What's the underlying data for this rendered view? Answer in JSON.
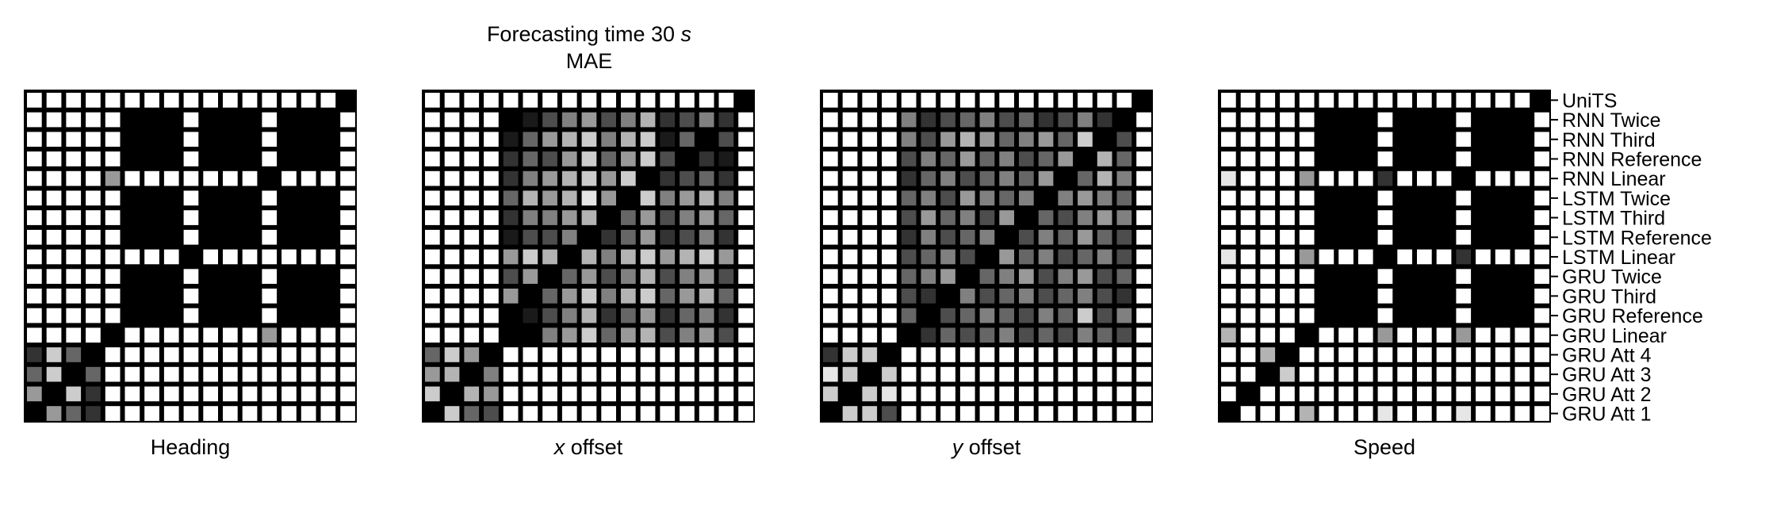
{
  "figure": {
    "title": "Forecasting time 30 s",
    "title_prefix": "Forecasting time 30 ",
    "title_unit": "s",
    "subtitle": "MAE"
  },
  "chart_data": [
    {
      "type": "heatmap",
      "name": "Heading",
      "xlabel": "Heading",
      "xlabel_italic": "",
      "xlabel_rest": "Heading",
      "colormap": "grayscale, black = low, white = high",
      "categories": [
        "UniTS",
        "RNN Twice",
        "RNN Third",
        "RNN Reference",
        "RNN Linear",
        "LSTM Twice",
        "LSTM Third",
        "LSTM Reference",
        "LSTM Linear",
        "GRU Twice",
        "GRU Third",
        "GRU Reference",
        "GRU Linear",
        "GRU Att 4",
        "GRU Att 3",
        "GRU Att 2",
        "GRU Att 1"
      ],
      "matrix": [
        [
          1,
          1,
          1,
          1,
          1,
          1,
          1,
          1,
          1,
          1,
          1,
          1,
          1,
          1,
          1,
          1,
          0
        ],
        [
          1,
          1,
          1,
          1,
          1,
          0,
          0,
          0,
          1,
          0,
          0,
          0,
          1,
          0,
          0,
          0,
          1
        ],
        [
          1,
          1,
          1,
          1,
          1,
          0,
          0,
          0,
          1,
          0,
          0,
          0,
          1,
          0,
          0,
          0,
          1
        ],
        [
          1,
          1,
          1,
          1,
          1,
          0,
          0,
          0,
          1,
          0,
          0,
          0,
          1,
          0,
          0,
          0,
          1
        ],
        [
          1,
          1,
          1,
          1,
          0.6,
          1,
          1,
          1,
          1,
          1,
          1,
          1,
          0,
          1,
          1,
          1,
          1
        ],
        [
          1,
          1,
          1,
          1,
          1,
          0,
          0,
          0,
          1,
          0,
          0,
          0,
          1,
          0,
          0,
          0,
          1
        ],
        [
          1,
          1,
          1,
          1,
          1,
          0,
          0,
          0,
          1,
          0,
          0,
          0,
          1,
          0,
          0,
          0,
          1
        ],
        [
          1,
          1,
          1,
          1,
          1,
          0,
          0,
          0,
          1,
          0,
          0,
          0,
          1,
          0,
          0,
          0,
          1
        ],
        [
          1,
          1,
          1,
          1,
          1,
          1,
          1,
          1,
          0,
          1,
          1,
          1,
          1,
          1,
          1,
          1,
          1
        ],
        [
          1,
          1,
          1,
          1,
          1,
          0,
          0,
          0,
          1,
          0,
          0,
          0,
          1,
          0,
          0,
          0,
          1
        ],
        [
          1,
          1,
          1,
          1,
          1,
          0,
          0,
          0,
          1,
          0,
          0,
          0,
          1,
          0,
          0,
          0,
          1
        ],
        [
          1,
          1,
          1,
          1,
          1,
          0,
          0,
          0,
          1,
          0,
          0,
          0,
          1,
          0,
          0,
          0,
          1
        ],
        [
          1,
          1,
          1,
          1,
          0,
          1,
          1,
          1,
          1,
          1,
          1,
          1,
          0.6,
          1,
          1,
          1,
          1
        ],
        [
          0.2,
          0.8,
          0.4,
          0,
          1,
          1,
          1,
          1,
          1,
          1,
          1,
          1,
          1,
          1,
          1,
          1,
          1
        ],
        [
          0.4,
          0.8,
          0,
          0.4,
          1,
          1,
          1,
          1,
          1,
          1,
          1,
          1,
          1,
          1,
          1,
          1,
          1
        ],
        [
          0.6,
          0,
          0.8,
          0.2,
          1,
          1,
          1,
          1,
          1,
          1,
          1,
          1,
          1,
          1,
          1,
          1,
          1
        ],
        [
          0,
          0.6,
          0.4,
          0.2,
          1,
          1,
          1,
          1,
          1,
          1,
          1,
          1,
          1,
          1,
          1,
          1,
          1
        ]
      ]
    },
    {
      "type": "heatmap",
      "name": "x offset",
      "xlabel": "x offset",
      "xlabel_italic": "x",
      "xlabel_rest": " offset",
      "colormap": "grayscale, black = low, white = high",
      "categories": [
        "UniTS",
        "RNN Twice",
        "RNN Third",
        "RNN Reference",
        "RNN Linear",
        "LSTM Twice",
        "LSTM Third",
        "LSTM Reference",
        "LSTM Linear",
        "GRU Twice",
        "GRU Third",
        "GRU Reference",
        "GRU Linear",
        "GRU Att 4",
        "GRU Att 3",
        "GRU Att 2",
        "GRU Att 1"
      ],
      "matrix": [
        [
          1,
          1,
          1,
          1,
          1,
          1,
          1,
          1,
          1,
          1,
          1,
          1,
          1,
          1,
          1,
          1,
          0
        ],
        [
          1,
          1,
          1,
          1,
          0,
          0.1,
          0.3,
          0.5,
          0.6,
          0.3,
          0.5,
          0.7,
          0.2,
          0.3,
          0.5,
          0.2,
          1
        ],
        [
          1,
          1,
          1,
          1,
          0.1,
          0.4,
          0.6,
          0.7,
          0.8,
          0.5,
          0.7,
          0.8,
          0.1,
          0.4,
          0,
          0.3,
          1
        ],
        [
          1,
          1,
          1,
          1,
          0.2,
          0.4,
          0.3,
          0.6,
          0.8,
          0.4,
          0.6,
          0.8,
          0.3,
          0,
          0.2,
          0.1,
          1
        ],
        [
          1,
          1,
          1,
          1,
          0.2,
          0.5,
          0.6,
          0.7,
          0.8,
          0.6,
          0.8,
          0,
          0.2,
          0.3,
          0.4,
          0.2,
          1
        ],
        [
          1,
          1,
          1,
          1,
          0.4,
          0.7,
          0.6,
          0.7,
          0.9,
          0.6,
          0,
          0.8,
          0.5,
          0.6,
          0.7,
          0.5,
          1
        ],
        [
          1,
          1,
          1,
          1,
          0.2,
          0.5,
          0.5,
          0.6,
          0.7,
          0,
          0.4,
          0.6,
          0.3,
          0.5,
          0.6,
          0.4,
          1
        ],
        [
          1,
          1,
          1,
          1,
          0.1,
          0.3,
          0.3,
          0.5,
          0,
          0.2,
          0.4,
          0.6,
          0.2,
          0.3,
          0.5,
          0.2,
          1
        ],
        [
          1,
          1,
          1,
          1,
          0.6,
          0.8,
          0.7,
          0,
          0.7,
          0.5,
          0.7,
          0.8,
          0.6,
          0.7,
          0.8,
          0.6,
          1
        ],
        [
          1,
          1,
          1,
          1,
          0.3,
          0.6,
          0,
          0.4,
          0.6,
          0.3,
          0.5,
          0.7,
          0.3,
          0.5,
          0.6,
          0.3,
          1
        ],
        [
          1,
          1,
          1,
          1,
          0.6,
          0,
          0.4,
          0.6,
          0.8,
          0.5,
          0.7,
          0.8,
          0.4,
          0.6,
          0.7,
          0.4,
          1
        ],
        [
          1,
          1,
          1,
          1,
          0,
          0.1,
          0.3,
          0.5,
          0.7,
          0.2,
          0.4,
          0.6,
          0.2,
          0.4,
          0.5,
          0.2,
          1
        ],
        [
          1,
          1,
          1,
          1,
          0,
          0,
          0.5,
          0.6,
          0.8,
          0.4,
          0.6,
          0.7,
          0.3,
          0.5,
          0.6,
          0.3,
          1
        ],
        [
          0.4,
          0.8,
          0.6,
          0,
          1,
          1,
          1,
          1,
          1,
          1,
          1,
          1,
          1,
          1,
          1,
          1,
          1
        ],
        [
          0.6,
          0.7,
          0,
          0.5,
          1,
          1,
          1,
          1,
          1,
          1,
          1,
          1,
          1,
          1,
          1,
          1,
          1
        ],
        [
          0.8,
          0,
          0.7,
          0.6,
          1,
          1,
          1,
          1,
          1,
          1,
          1,
          1,
          1,
          1,
          1,
          1,
          1
        ],
        [
          0,
          0.8,
          0.4,
          0.3,
          1,
          1,
          1,
          1,
          1,
          1,
          1,
          1,
          1,
          1,
          1,
          1,
          1
        ]
      ]
    },
    {
      "type": "heatmap",
      "name": "y offset",
      "xlabel": "y offset",
      "xlabel_italic": "y",
      "xlabel_rest": " offset",
      "colormap": "grayscale, black = low, white = high",
      "categories": [
        "UniTS",
        "RNN Twice",
        "RNN Third",
        "RNN Reference",
        "RNN Linear",
        "LSTM Twice",
        "LSTM Third",
        "LSTM Reference",
        "LSTM Linear",
        "GRU Twice",
        "GRU Third",
        "GRU Reference",
        "GRU Linear",
        "GRU Att 4",
        "GRU Att 3",
        "GRU Att 2",
        "GRU Att 1"
      ],
      "matrix": [
        [
          1,
          1,
          1,
          1,
          1,
          1,
          1,
          1,
          1,
          1,
          1,
          1,
          1,
          1,
          1,
          1,
          0
        ],
        [
          1,
          1,
          1,
          1,
          0.5,
          0.2,
          0.3,
          0.4,
          0.5,
          0.3,
          0.4,
          0.2,
          0.3,
          0.5,
          0.2,
          0,
          1
        ],
        [
          1,
          1,
          1,
          1,
          0.5,
          0.3,
          0.6,
          0.7,
          0.6,
          0.4,
          0.5,
          0.6,
          0.4,
          0.8,
          0,
          0.3,
          1
        ],
        [
          1,
          1,
          1,
          1,
          0.3,
          0.5,
          0.4,
          0.6,
          0.4,
          0.5,
          0.3,
          0.4,
          0.6,
          0,
          0.7,
          0.4,
          1
        ],
        [
          1,
          1,
          1,
          1,
          0.2,
          0.4,
          0.5,
          0.3,
          0.4,
          0.5,
          0.4,
          0.6,
          0,
          0.4,
          0.7,
          0.5,
          1
        ],
        [
          1,
          1,
          1,
          1,
          0.4,
          0.5,
          0.3,
          0.6,
          0.5,
          0.4,
          0.5,
          0,
          0.5,
          0.6,
          0.5,
          0.4,
          1
        ],
        [
          1,
          1,
          1,
          1,
          0.3,
          0.6,
          0.4,
          0.5,
          0.3,
          0.6,
          0,
          0.4,
          0.3,
          0.5,
          0.6,
          0.5,
          1
        ],
        [
          1,
          1,
          1,
          1,
          0.2,
          0.5,
          0.3,
          0.4,
          0.5,
          0,
          0.3,
          0.5,
          0.4,
          0.6,
          0.4,
          0.3,
          1
        ],
        [
          1,
          1,
          1,
          1,
          0.3,
          0.4,
          0.5,
          0.3,
          0,
          0.6,
          0.4,
          0.5,
          0.3,
          0.4,
          0.5,
          0.3,
          1
        ],
        [
          1,
          1,
          1,
          1,
          0.4,
          0.5,
          0.6,
          0,
          0.4,
          0.5,
          0.6,
          0.3,
          0.5,
          0.6,
          0.3,
          0.4,
          1
        ],
        [
          1,
          1,
          1,
          1,
          0.3,
          0.2,
          0,
          0.5,
          0.3,
          0.4,
          0.5,
          0.3,
          0.4,
          0.5,
          0.3,
          0.2,
          1
        ],
        [
          1,
          1,
          1,
          1,
          0.4,
          0,
          0.3,
          0.4,
          0.5,
          0.4,
          0.3,
          0.5,
          0.4,
          0.8,
          0.3,
          0.5,
          1
        ],
        [
          1,
          1,
          1,
          1,
          0,
          0.2,
          0.4,
          0.3,
          0.4,
          0.5,
          0.3,
          0.4,
          0.3,
          0.5,
          0.4,
          0.3,
          1
        ],
        [
          0.2,
          0.8,
          0.8,
          0,
          1,
          1,
          1,
          1,
          1,
          1,
          1,
          1,
          1,
          1,
          1,
          1,
          1
        ],
        [
          0.9,
          0.8,
          0,
          0.8,
          1,
          1,
          1,
          1,
          1,
          1,
          1,
          1,
          1,
          1,
          1,
          1,
          1
        ],
        [
          0.8,
          0,
          0.8,
          0.9,
          1,
          1,
          1,
          1,
          1,
          1,
          1,
          1,
          1,
          1,
          1,
          1,
          1
        ],
        [
          0,
          0.8,
          0.8,
          0.3,
          1,
          1,
          1,
          1,
          1,
          1,
          1,
          1,
          1,
          1,
          1,
          1,
          1
        ]
      ]
    },
    {
      "type": "heatmap",
      "name": "Speed",
      "xlabel": "Speed",
      "xlabel_italic": "",
      "xlabel_rest": "Speed",
      "colormap": "grayscale, black = low, white = high",
      "categories": [
        "UniTS",
        "RNN Twice",
        "RNN Third",
        "RNN Reference",
        "RNN Linear",
        "LSTM Twice",
        "LSTM Third",
        "LSTM Reference",
        "LSTM Linear",
        "GRU Twice",
        "GRU Third",
        "GRU Reference",
        "GRU Linear",
        "GRU Att 4",
        "GRU Att 3",
        "GRU Att 2",
        "GRU Att 1"
      ],
      "matrix": [
        [
          1,
          1,
          1,
          1,
          1,
          1,
          1,
          1,
          1,
          1,
          1,
          1,
          1,
          1,
          1,
          1,
          0
        ],
        [
          1,
          1,
          1,
          1,
          1,
          0,
          0,
          0,
          1,
          0,
          0,
          0,
          1,
          0,
          0,
          0,
          1
        ],
        [
          1,
          1,
          1,
          1,
          1,
          0,
          0,
          0,
          1,
          0,
          0,
          0,
          1,
          0,
          0,
          0,
          1
        ],
        [
          1,
          1,
          1,
          1,
          1,
          0,
          0,
          0,
          1,
          0,
          0,
          0,
          1,
          0,
          0,
          0,
          1
        ],
        [
          0.9,
          1,
          1,
          1,
          0.6,
          1,
          1,
          1,
          0.2,
          1,
          1,
          1,
          0,
          1,
          1,
          1,
          1
        ],
        [
          1,
          1,
          1,
          1,
          1,
          0,
          0,
          0,
          1,
          0,
          0,
          0,
          1,
          0,
          0,
          0,
          1
        ],
        [
          1,
          1,
          1,
          1,
          1,
          0,
          0,
          0,
          1,
          0,
          0,
          0,
          1,
          0,
          0,
          0,
          1
        ],
        [
          1,
          1,
          1,
          1,
          1,
          0,
          0,
          0,
          1,
          0,
          0,
          0,
          1,
          0,
          0,
          0,
          1
        ],
        [
          0.9,
          1,
          1,
          1,
          0.6,
          1,
          1,
          1,
          0,
          1,
          1,
          1,
          0.2,
          1,
          1,
          1,
          1
        ],
        [
          1,
          1,
          1,
          1,
          1,
          0,
          0,
          0,
          1,
          0,
          0,
          0,
          1,
          0,
          0,
          0,
          1
        ],
        [
          1,
          1,
          1,
          1,
          1,
          0,
          0,
          0,
          1,
          0,
          0,
          0,
          1,
          0,
          0,
          0,
          1
        ],
        [
          1,
          1,
          1,
          1,
          1,
          0,
          0,
          0,
          1,
          0,
          0,
          0,
          1,
          0,
          0,
          0,
          1
        ],
        [
          0.7,
          1,
          1,
          1,
          0,
          1,
          1,
          1,
          0.6,
          1,
          1,
          1,
          0.6,
          1,
          1,
          1,
          1
        ],
        [
          1,
          1,
          0.7,
          0,
          1,
          1,
          1,
          1,
          1,
          1,
          1,
          1,
          1,
          1,
          1,
          1,
          1
        ],
        [
          1,
          1,
          0,
          0.8,
          1,
          1,
          1,
          1,
          1,
          1,
          1,
          1,
          1,
          1,
          1,
          1,
          1
        ],
        [
          1,
          0,
          1,
          1,
          1,
          1,
          1,
          1,
          1,
          1,
          1,
          1,
          1,
          1,
          1,
          1,
          1
        ],
        [
          0,
          1,
          1,
          1,
          0.7,
          1,
          1,
          1,
          0.9,
          1,
          1,
          1,
          0.9,
          1,
          1,
          1,
          1
        ]
      ]
    }
  ]
}
